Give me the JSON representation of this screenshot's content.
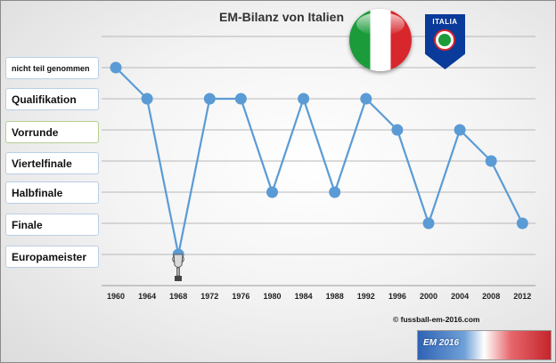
{
  "chart_data": {
    "type": "line",
    "title": "EM-Bilanz von Italien",
    "xlabel": "",
    "ylabel": "",
    "categories": [
      "1960",
      "1964",
      "1968",
      "1972",
      "1976",
      "1980",
      "1984",
      "1988",
      "1992",
      "1996",
      "2000",
      "2004",
      "2008",
      "2012"
    ],
    "y_categories": [
      "nicht teil genommen",
      "Qualifikation",
      "Vorrunde",
      "Viertelfinale",
      "Halbfinale",
      "Finale",
      "Europameister"
    ],
    "series": [
      {
        "values": [
          "nicht teil genommen",
          "Qualifikation",
          "Europameister",
          "Qualifikation",
          "Qualifikation",
          "Halbfinale",
          "Qualifikation",
          "Halbfinale",
          "Qualifikation",
          "Vorrunde",
          "Finale",
          "Vorrunde",
          "Viertelfinale",
          "Finale"
        ]
      }
    ],
    "grid": true,
    "colors": {
      "line": "#5b9bd5",
      "marker": "#5b9bd5",
      "grid": "#b7b7b7"
    }
  },
  "flag_icon": "italy-flag-icon",
  "crest": {
    "text": "ITALIA",
    "icon": "figc-crest-icon"
  },
  "copyright": "© fussball-em-2016.com",
  "banner": {
    "text": "EM 2016",
    "icon": "euro-2016-banner"
  },
  "trophy_icon": "trophy-icon"
}
